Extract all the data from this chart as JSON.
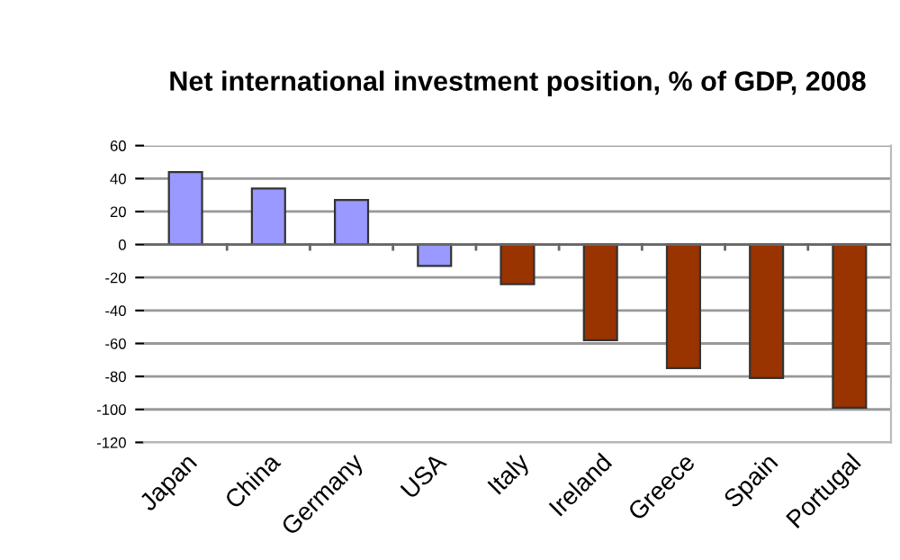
{
  "chart_data": {
    "type": "bar",
    "title": "Net international investment position, % of GDP, 2008",
    "categories": [
      "Japan",
      "China",
      "Germany",
      "USA",
      "Italy",
      "Ireland",
      "Greece",
      "Spain",
      "Portugal"
    ],
    "values": [
      44,
      34,
      27,
      -13,
      -24,
      -58,
      -75,
      -81,
      -99
    ],
    "colors": [
      "#9999ff",
      "#9999ff",
      "#9999ff",
      "#9999ff",
      "#993300",
      "#993300",
      "#993300",
      "#993300",
      "#993300"
    ],
    "ylim": [
      -120,
      60
    ],
    "yticks": [
      -120,
      -100,
      -80,
      -60,
      -40,
      -20,
      0,
      20,
      40,
      60
    ],
    "grid": "y",
    "legend": false
  }
}
